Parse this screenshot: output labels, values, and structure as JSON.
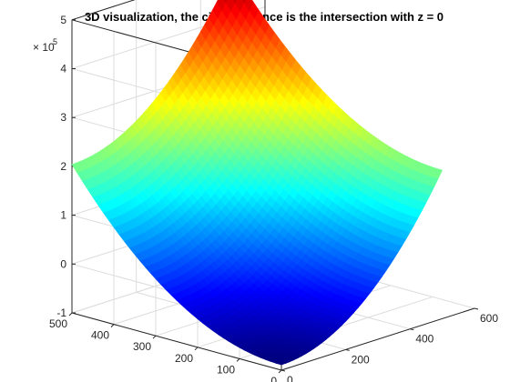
{
  "chart_data": {
    "type": "surface",
    "title": "3D visualization, the circumference is the intersection with z = 0",
    "xlabel": "",
    "ylabel": "",
    "zlabel": "",
    "x_range": [
      0,
      600
    ],
    "y_range": [
      0,
      500
    ],
    "z_range": [
      -100000,
      500000
    ],
    "x_ticks": [
      "0",
      "200",
      "400",
      "600"
    ],
    "y_ticks": [
      "0",
      "100",
      "200",
      "300",
      "400",
      "500"
    ],
    "z_ticks": [
      "-1",
      "0",
      "1",
      "2",
      "3",
      "4",
      "5"
    ],
    "z_exponent_base": "× 10",
    "z_exponent_power": "5",
    "colormap": "jet",
    "grid": true,
    "box": true,
    "surface": {
      "x_extent": [
        0,
        500
      ],
      "y_extent": [
        0,
        500
      ],
      "z_at_corners": {
        "x0_y0": -89000,
        "x500_y0": 204000,
        "x0_y500": 204000,
        "x500_y500": 497000
      },
      "z_min": -89000,
      "z_max": 497000
    }
  }
}
